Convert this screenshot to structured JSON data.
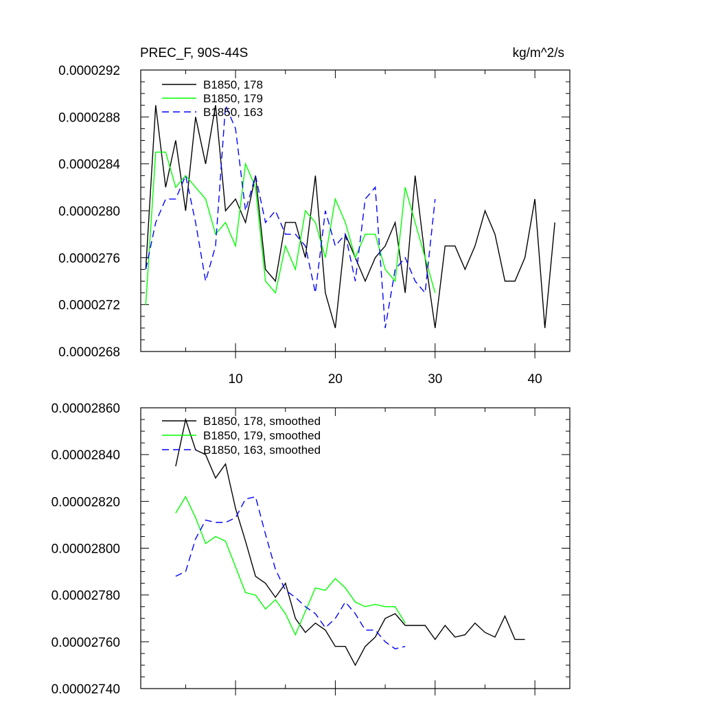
{
  "colors": {
    "series_178": "#000000",
    "series_179": "#00ff00",
    "series_163": "#0000ff"
  },
  "chart_data": [
    {
      "type": "line",
      "title_left": "PREC_F, 90S-44S",
      "title_right": "kg/m^2/s",
      "xlabel": "",
      "ylabel": "",
      "xlim": [
        0.5,
        43.5
      ],
      "ylim": [
        2.68e-05,
        2.92e-05
      ],
      "xticks": [
        10,
        20,
        30,
        40
      ],
      "xtick_labels": [
        "10",
        "20",
        "30",
        "40"
      ],
      "yticks": [
        2.68e-05,
        2.72e-05,
        2.76e-05,
        2.8e-05,
        2.84e-05,
        2.88e-05,
        2.92e-05
      ],
      "ytick_labels": [
        "0.0000268",
        "0.0000272",
        "0.0000276",
        "0.0000280",
        "0.0000284",
        "0.0000288",
        "0.0000292"
      ],
      "legend_position": "top-left",
      "series": [
        {
          "name": "B1850, 178",
          "color": "#000000",
          "dash": "solid",
          "x": [
            1,
            2,
            3,
            4,
            5,
            6,
            7,
            8,
            9,
            10,
            11,
            12,
            13,
            14,
            15,
            16,
            17,
            18,
            19,
            20,
            21,
            22,
            23,
            24,
            25,
            26,
            27,
            28,
            29,
            30,
            31,
            32,
            33,
            34,
            35,
            36,
            37,
            38,
            39,
            40,
            41,
            42
          ],
          "values": [
            2.75e-05,
            2.89e-05,
            2.82e-05,
            2.86e-05,
            2.8e-05,
            2.88e-05,
            2.84e-05,
            2.89e-05,
            2.8e-05,
            2.81e-05,
            2.79e-05,
            2.83e-05,
            2.75e-05,
            2.74e-05,
            2.79e-05,
            2.79e-05,
            2.76e-05,
            2.83e-05,
            2.73e-05,
            2.7e-05,
            2.78e-05,
            2.76e-05,
            2.74e-05,
            2.76e-05,
            2.77e-05,
            2.79e-05,
            2.73e-05,
            2.83e-05,
            2.76e-05,
            2.7e-05,
            2.77e-05,
            2.77e-05,
            2.75e-05,
            2.77e-05,
            2.8e-05,
            2.78e-05,
            2.74e-05,
            2.74e-05,
            2.76e-05,
            2.81e-05,
            2.7e-05,
            2.79e-05
          ]
        },
        {
          "name": "B1850, 179",
          "color": "#00ff00",
          "dash": "solid",
          "x": [
            1,
            2,
            3,
            4,
            5,
            6,
            7,
            8,
            9,
            10,
            11,
            12,
            13,
            14,
            15,
            16,
            17,
            18,
            19,
            20,
            21,
            22,
            23,
            24,
            25,
            26,
            27,
            28,
            29,
            30
          ],
          "values": [
            2.72e-05,
            2.85e-05,
            2.85e-05,
            2.82e-05,
            2.83e-05,
            2.82e-05,
            2.81e-05,
            2.78e-05,
            2.79e-05,
            2.77e-05,
            2.84e-05,
            2.82e-05,
            2.74e-05,
            2.73e-05,
            2.77e-05,
            2.75e-05,
            2.8e-05,
            2.79e-05,
            2.76e-05,
            2.81e-05,
            2.79e-05,
            2.76e-05,
            2.78e-05,
            2.78e-05,
            2.75e-05,
            2.74e-05,
            2.82e-05,
            2.79e-05,
            2.76e-05,
            2.73e-05
          ]
        },
        {
          "name": "B1850, 163",
          "color": "#0000ff",
          "dash": "dashed",
          "x": [
            1,
            2,
            3,
            4,
            5,
            6,
            7,
            8,
            9,
            10,
            11,
            12,
            13,
            14,
            15,
            16,
            17,
            18,
            19,
            20,
            21,
            22,
            23,
            24,
            25,
            26,
            27,
            28,
            29,
            30
          ],
          "values": [
            2.75e-05,
            2.79e-05,
            2.81e-05,
            2.81e-05,
            2.83e-05,
            2.79e-05,
            2.74e-05,
            2.77e-05,
            2.89e-05,
            2.87e-05,
            2.8e-05,
            2.83e-05,
            2.79e-05,
            2.8e-05,
            2.78e-05,
            2.78e-05,
            2.77e-05,
            2.73e-05,
            2.8e-05,
            2.77e-05,
            2.78e-05,
            2.74e-05,
            2.81e-05,
            2.82e-05,
            2.7e-05,
            2.75e-05,
            2.76e-05,
            2.74e-05,
            2.73e-05,
            2.81e-05
          ]
        }
      ]
    },
    {
      "type": "line",
      "title_left": "",
      "title_right": "",
      "xlabel": "",
      "ylabel": "",
      "xlim": [
        0.5,
        43.5
      ],
      "ylim": [
        2.74e-05,
        2.86e-05
      ],
      "xticks": [
        10,
        20,
        30,
        40
      ],
      "xtick_labels": [],
      "yticks": [
        2.74e-05,
        2.76e-05,
        2.78e-05,
        2.8e-05,
        2.82e-05,
        2.84e-05,
        2.86e-05
      ],
      "ytick_labels": [
        "0.00002740",
        "0.00002760",
        "0.00002780",
        "0.00002800",
        "0.00002820",
        "0.00002840",
        "0.00002860"
      ],
      "legend_position": "top-left",
      "series": [
        {
          "name": "B1850, 178, smoothed",
          "color": "#000000",
          "dash": "solid",
          "x": [
            4,
            5,
            6,
            7,
            8,
            9,
            10,
            11,
            12,
            13,
            14,
            15,
            16,
            17,
            18,
            19,
            20,
            21,
            22,
            23,
            24,
            25,
            26,
            27,
            28,
            29,
            30,
            31,
            32,
            33,
            34,
            35,
            36,
            37,
            38,
            39
          ],
          "values": [
            2.835e-05,
            2.855e-05,
            2.842e-05,
            2.84e-05,
            2.83e-05,
            2.836e-05,
            2.817e-05,
            2.803e-05,
            2.788e-05,
            2.785e-05,
            2.779e-05,
            2.785e-05,
            2.77e-05,
            2.764e-05,
            2.768e-05,
            2.765e-05,
            2.758e-05,
            2.758e-05,
            2.75e-05,
            2.758e-05,
            2.762e-05,
            2.77e-05,
            2.772e-05,
            2.767e-05,
            2.767e-05,
            2.767e-05,
            2.761e-05,
            2.767e-05,
            2.762e-05,
            2.763e-05,
            2.768e-05,
            2.764e-05,
            2.762e-05,
            2.771e-05,
            2.761e-05,
            2.761e-05
          ]
        },
        {
          "name": "B1850, 179, smoothed",
          "color": "#00ff00",
          "dash": "solid",
          "x": [
            4,
            5,
            6,
            7,
            8,
            9,
            10,
            11,
            12,
            13,
            14,
            15,
            16,
            17,
            18,
            19,
            20,
            21,
            22,
            23,
            24,
            25,
            26,
            27
          ],
          "values": [
            2.815e-05,
            2.822e-05,
            2.813e-05,
            2.802e-05,
            2.805e-05,
            2.803e-05,
            2.792e-05,
            2.781e-05,
            2.78e-05,
            2.774e-05,
            2.778e-05,
            2.772e-05,
            2.763e-05,
            2.773e-05,
            2.783e-05,
            2.782e-05,
            2.787e-05,
            2.783e-05,
            2.777e-05,
            2.775e-05,
            2.776e-05,
            2.775e-05,
            2.775e-05,
            2.768e-05
          ]
        },
        {
          "name": "B1850, 163, smoothed",
          "color": "#0000ff",
          "dash": "dashed",
          "x": [
            4,
            5,
            6,
            7,
            8,
            9,
            10,
            11,
            12,
            13,
            14,
            15,
            16,
            17,
            18,
            19,
            20,
            21,
            22,
            23,
            24,
            25,
            26,
            27
          ],
          "values": [
            2.788e-05,
            2.79e-05,
            2.804e-05,
            2.812e-05,
            2.811e-05,
            2.811e-05,
            2.813e-05,
            2.821e-05,
            2.822e-05,
            2.806e-05,
            2.791e-05,
            2.782e-05,
            2.779e-05,
            2.775e-05,
            2.772e-05,
            2.766e-05,
            2.77e-05,
            2.777e-05,
            2.772e-05,
            2.765e-05,
            2.765e-05,
            2.76e-05,
            2.757e-05,
            2.758e-05
          ]
        }
      ]
    }
  ]
}
